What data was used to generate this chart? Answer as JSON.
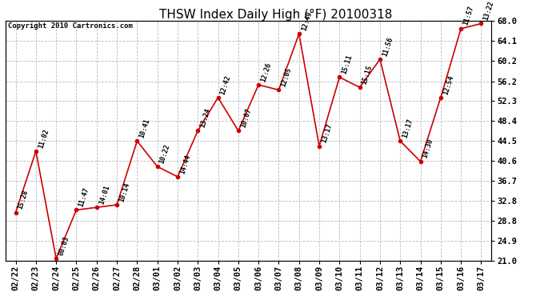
{
  "title": "THSW Index Daily High (°F) 20100318",
  "copyright": "Copyright 2010 Cartronics.com",
  "ylim": [
    21.0,
    68.0
  ],
  "yticks": [
    21.0,
    24.9,
    28.8,
    32.8,
    36.7,
    40.6,
    44.5,
    48.4,
    52.3,
    56.2,
    60.2,
    64.1,
    68.0
  ],
  "dates": [
    "02/22",
    "02/23",
    "02/24",
    "02/25",
    "02/26",
    "02/27",
    "02/28",
    "03/01",
    "03/02",
    "03/03",
    "03/04",
    "03/05",
    "03/06",
    "03/07",
    "03/08",
    "03/09",
    "03/10",
    "03/11",
    "03/12",
    "03/13",
    "03/14",
    "03/15",
    "03/16",
    "03/17"
  ],
  "values": [
    30.5,
    42.5,
    21.5,
    31.0,
    31.5,
    32.0,
    44.5,
    39.5,
    37.5,
    46.5,
    53.0,
    46.5,
    55.5,
    54.5,
    65.5,
    43.5,
    57.0,
    55.0,
    60.5,
    44.5,
    40.5,
    53.0,
    66.5,
    67.5
  ],
  "time_labels": [
    "15:28",
    "11:02",
    "00:03",
    "11:47",
    "14:01",
    "10:14",
    "10:41",
    "10:22",
    "14:44",
    "13:24",
    "12:42",
    "10:07",
    "12:26",
    "12:05",
    "12:49",
    "13:17",
    "15:11",
    "15:15",
    "11:56",
    "13:17",
    "14:30",
    "12:54",
    "11:57",
    "13:22"
  ],
  "line_color": "#cc0000",
  "marker_color": "#cc0000",
  "bg_color": "#ffffff",
  "plot_bg_color": "#ffffff",
  "grid_color": "#bbbbbb",
  "title_fontsize": 11,
  "copyright_fontsize": 6.5,
  "label_fontsize": 6.0,
  "tick_fontsize": 7.5
}
